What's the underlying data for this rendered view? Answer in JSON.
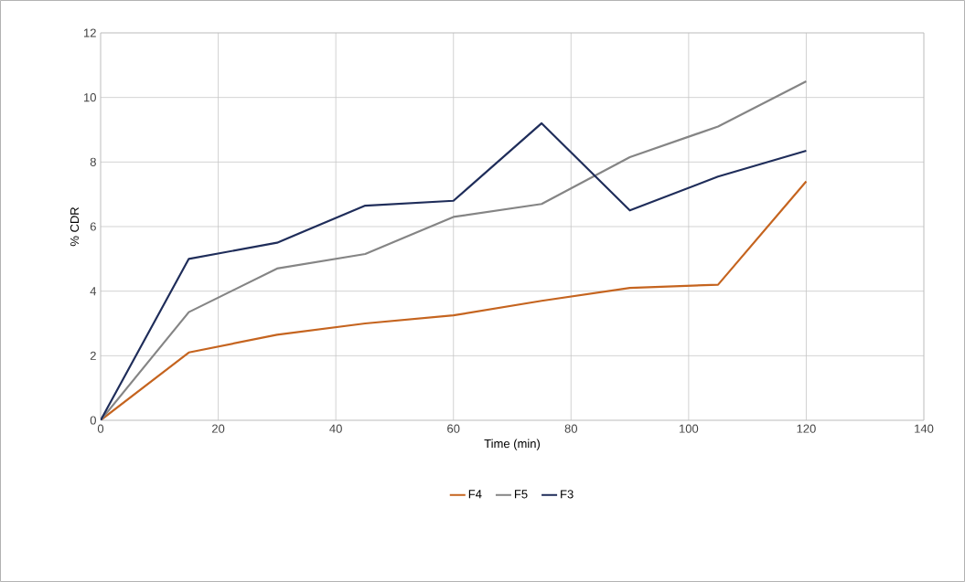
{
  "chart_data": {
    "type": "line",
    "xlabel": "Time (min)",
    "ylabel": "% CDR",
    "x": [
      0,
      15,
      30,
      45,
      60,
      75,
      90,
      105,
      120
    ],
    "series": [
      {
        "name": "F4",
        "color": "#c5641f",
        "values": [
          0,
          2.1,
          2.65,
          3.0,
          3.25,
          3.7,
          4.1,
          4.2,
          7.4
        ]
      },
      {
        "name": "F5",
        "color": "#858585",
        "values": [
          0,
          3.35,
          4.7,
          5.15,
          6.3,
          6.7,
          8.15,
          9.1,
          10.5
        ]
      },
      {
        "name": "F3",
        "color": "#1f2d5a",
        "values": [
          0,
          5.0,
          5.5,
          6.65,
          6.8,
          9.2,
          6.5,
          7.55,
          8.35
        ]
      }
    ],
    "xlim": [
      0,
      140
    ],
    "ylim": [
      0,
      12
    ],
    "xticks": [
      0,
      20,
      40,
      60,
      80,
      100,
      120,
      140
    ],
    "yticks": [
      0,
      2,
      4,
      6,
      8,
      10,
      12
    ],
    "grid": true,
    "legend": "bottom",
    "marker": "none",
    "line_style": "solid"
  }
}
